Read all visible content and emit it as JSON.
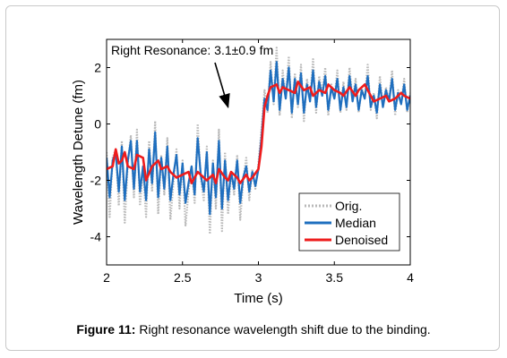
{
  "figure": {
    "label": "Figure 11:",
    "text": " Right resonance wavelength shift due to the binding."
  },
  "chart_data": {
    "type": "line",
    "xlabel": "Time (s)",
    "ylabel": "Wavelength Detune (fm)",
    "xlim": [
      2,
      4
    ],
    "ylim": [
      -5,
      3
    ],
    "xticks": [
      2,
      2.5,
      3,
      3.5,
      4
    ],
    "xtick_labels": [
      "2",
      "2.5",
      "3",
      "3.5",
      "4"
    ],
    "yticks": [
      -4,
      -2,
      0,
      2
    ],
    "ytick_labels": [
      "-4",
      "-2",
      "0",
      "2"
    ],
    "grid": false,
    "legend_position": "bottom-right",
    "annotation": {
      "text": "Right Resonance: 3.1±0.9 fm",
      "arrow_to": {
        "x": 2.8,
        "y": 0.6
      }
    },
    "series": [
      {
        "name": "Orig.",
        "color": "#b9b9b9",
        "style": "dotted",
        "x": [
          2.0,
          2.02,
          2.04,
          2.06,
          2.08,
          2.1,
          2.12,
          2.14,
          2.16,
          2.18,
          2.2,
          2.22,
          2.24,
          2.26,
          2.28,
          2.3,
          2.32,
          2.34,
          2.36,
          2.38,
          2.4,
          2.42,
          2.44,
          2.46,
          2.48,
          2.5,
          2.52,
          2.54,
          2.56,
          2.58,
          2.6,
          2.62,
          2.64,
          2.66,
          2.68,
          2.7,
          2.72,
          2.74,
          2.76,
          2.78,
          2.8,
          2.82,
          2.84,
          2.86,
          2.88,
          2.9,
          2.92,
          2.94,
          2.96,
          2.98,
          3.0,
          3.02,
          3.04,
          3.06,
          3.08,
          3.1,
          3.12,
          3.14,
          3.16,
          3.18,
          3.2,
          3.22,
          3.24,
          3.26,
          3.28,
          3.3,
          3.32,
          3.34,
          3.36,
          3.38,
          3.4,
          3.42,
          3.44,
          3.46,
          3.48,
          3.5,
          3.52,
          3.54,
          3.56,
          3.58,
          3.6,
          3.62,
          3.64,
          3.66,
          3.68,
          3.7,
          3.72,
          3.74,
          3.76,
          3.78,
          3.8,
          3.82,
          3.84,
          3.86,
          3.88,
          3.9,
          3.92,
          3.94,
          3.96,
          3.98,
          4.0
        ],
        "y": [
          -1.0,
          -3.3,
          -1.2,
          -0.9,
          -2.9,
          -0.6,
          -3.5,
          -1.4,
          -0.4,
          -2.6,
          -0.2,
          -2.9,
          -1.6,
          -3.3,
          -0.6,
          -2.4,
          0.1,
          -3.2,
          -1.1,
          -2.5,
          -0.5,
          -3.4,
          -2.1,
          -0.9,
          -3.0,
          -1.3,
          -3.6,
          -2.4,
          -1.5,
          -2.8,
          0.0,
          -1.9,
          -2.7,
          -0.8,
          -3.9,
          -1.3,
          -3.0,
          -0.2,
          -3.8,
          -1.0,
          -3.2,
          -1.7,
          -2.5,
          -1.1,
          -3.4,
          -2.0,
          -1.2,
          -2.7,
          -1.6,
          -2.3,
          -1.4,
          -0.2,
          1.2,
          0.4,
          2.2,
          0.7,
          2.7,
          0.3,
          1.9,
          0.9,
          2.4,
          0.2,
          1.8,
          0.6,
          2.1,
          0.1,
          1.6,
          0.8,
          2.3,
          0.4,
          1.7,
          1.1,
          2.0,
          0.3,
          1.4,
          0.9,
          1.9,
          0.4,
          1.5,
          0.5,
          2.0,
          0.8,
          1.6,
          0.4,
          1.3,
          0.9,
          2.1,
          0.5,
          1.1,
          0.2,
          1.7,
          0.6,
          1.3,
          0.8,
          1.9,
          0.3,
          1.2,
          0.7,
          1.6,
          0.4,
          1.1
        ]
      },
      {
        "name": "Median",
        "color": "#1f6fbf",
        "style": "solid",
        "x": [
          2.0,
          2.02,
          2.04,
          2.06,
          2.08,
          2.1,
          2.12,
          2.14,
          2.16,
          2.18,
          2.2,
          2.22,
          2.24,
          2.26,
          2.28,
          2.3,
          2.32,
          2.34,
          2.36,
          2.38,
          2.4,
          2.42,
          2.44,
          2.46,
          2.48,
          2.5,
          2.52,
          2.54,
          2.56,
          2.58,
          2.6,
          2.62,
          2.64,
          2.66,
          2.68,
          2.7,
          2.72,
          2.74,
          2.76,
          2.78,
          2.8,
          2.82,
          2.84,
          2.86,
          2.88,
          2.9,
          2.92,
          2.94,
          2.96,
          2.98,
          3.0,
          3.02,
          3.04,
          3.06,
          3.08,
          3.1,
          3.12,
          3.14,
          3.16,
          3.18,
          3.2,
          3.22,
          3.24,
          3.26,
          3.28,
          3.3,
          3.32,
          3.34,
          3.36,
          3.38,
          3.4,
          3.42,
          3.44,
          3.46,
          3.48,
          3.5,
          3.52,
          3.54,
          3.56,
          3.58,
          3.6,
          3.62,
          3.64,
          3.66,
          3.68,
          3.7,
          3.72,
          3.74,
          3.76,
          3.78,
          3.8,
          3.82,
          3.84,
          3.86,
          3.88,
          3.9,
          3.92,
          3.94,
          3.96,
          3.98,
          4.0
        ],
        "y": [
          -1.2,
          -2.6,
          -1.3,
          -1.0,
          -2.4,
          -0.8,
          -2.7,
          -1.3,
          -0.6,
          -2.3,
          -0.6,
          -2.4,
          -1.5,
          -2.7,
          -0.9,
          -2.1,
          -0.3,
          -2.6,
          -1.2,
          -2.3,
          -0.8,
          -2.7,
          -1.8,
          -1.1,
          -2.5,
          -1.4,
          -2.8,
          -2.1,
          -1.5,
          -2.5,
          -0.5,
          -1.8,
          -2.4,
          -1.0,
          -3.2,
          -1.4,
          -2.6,
          -0.6,
          -3.0,
          -1.3,
          -2.7,
          -1.7,
          -2.3,
          -1.3,
          -2.8,
          -1.9,
          -1.5,
          -2.4,
          -1.7,
          -2.2,
          -1.6,
          -0.5,
          0.9,
          0.5,
          1.9,
          0.8,
          2.2,
          0.5,
          1.6,
          0.9,
          2.0,
          0.4,
          1.6,
          0.7,
          1.8,
          0.4,
          1.4,
          0.8,
          1.9,
          0.6,
          1.5,
          1.0,
          1.7,
          0.5,
          1.3,
          0.9,
          1.6,
          0.5,
          1.3,
          0.6,
          1.7,
          0.8,
          1.4,
          0.5,
          1.2,
          0.9,
          1.7,
          0.6,
          1.0,
          0.4,
          1.4,
          0.6,
          1.2,
          0.8,
          1.6,
          0.5,
          1.1,
          0.7,
          1.4,
          0.5,
          1.0
        ]
      },
      {
        "name": "Denoised",
        "color": "#ee1c1c",
        "style": "solid",
        "x": [
          2.0,
          2.04,
          2.06,
          2.08,
          2.1,
          2.12,
          2.14,
          2.18,
          2.2,
          2.24,
          2.26,
          2.3,
          2.34,
          2.36,
          2.4,
          2.42,
          2.46,
          2.5,
          2.54,
          2.56,
          2.6,
          2.64,
          2.66,
          2.7,
          2.72,
          2.74,
          2.78,
          2.8,
          2.82,
          2.86,
          2.88,
          2.92,
          2.94,
          2.96,
          3.0,
          3.02,
          3.04,
          3.06,
          3.08,
          3.12,
          3.14,
          3.16,
          3.2,
          3.24,
          3.26,
          3.3,
          3.34,
          3.36,
          3.4,
          3.44,
          3.46,
          3.5,
          3.54,
          3.56,
          3.6,
          3.64,
          3.66,
          3.7,
          3.74,
          3.76,
          3.8,
          3.84,
          3.86,
          3.9,
          3.94,
          3.96,
          4.0
        ],
        "y": [
          -1.6,
          -1.5,
          -0.9,
          -1.4,
          -1.3,
          -1.0,
          -1.5,
          -1.6,
          -1.1,
          -1.2,
          -2.0,
          -1.5,
          -1.3,
          -1.6,
          -1.5,
          -1.7,
          -1.9,
          -1.8,
          -1.7,
          -2.1,
          -1.7,
          -1.9,
          -2.0,
          -1.8,
          -2.1,
          -1.6,
          -1.9,
          -2.0,
          -1.7,
          -1.9,
          -2.1,
          -1.8,
          -2.0,
          -1.9,
          -1.6,
          -0.8,
          0.6,
          1.0,
          1.3,
          1.4,
          1.1,
          1.3,
          1.2,
          1.1,
          1.5,
          1.2,
          1.3,
          1.0,
          1.2,
          1.1,
          1.4,
          1.2,
          1.1,
          1.0,
          1.3,
          1.0,
          1.2,
          1.4,
          1.0,
          0.8,
          0.9,
          1.0,
          0.8,
          0.9,
          1.1,
          1.0,
          0.9
        ]
      }
    ]
  }
}
